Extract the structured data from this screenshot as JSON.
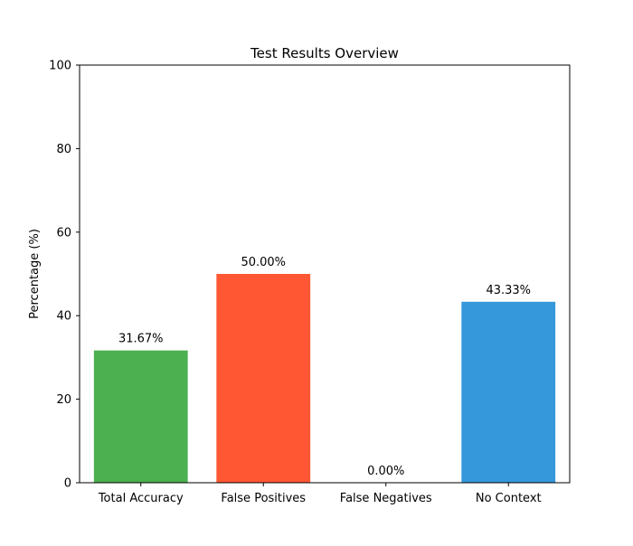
{
  "chart_data": {
    "type": "bar",
    "title": "Test Results Overview",
    "xlabel": "",
    "ylabel": "Percentage (%)",
    "ylim": [
      0,
      100
    ],
    "yticks": [
      0,
      20,
      40,
      60,
      80,
      100
    ],
    "categories": [
      "Total Accuracy",
      "False Positives",
      "False Negatives",
      "No Context"
    ],
    "values": [
      31.67,
      50.0,
      0.0,
      43.33
    ],
    "value_labels": [
      "31.67%",
      "50.00%",
      "0.00%",
      "43.33%"
    ],
    "colors": [
      "#4caf50",
      "#ff5733",
      "#ff5733",
      "#3498db"
    ],
    "grid": false,
    "legend": false
  }
}
